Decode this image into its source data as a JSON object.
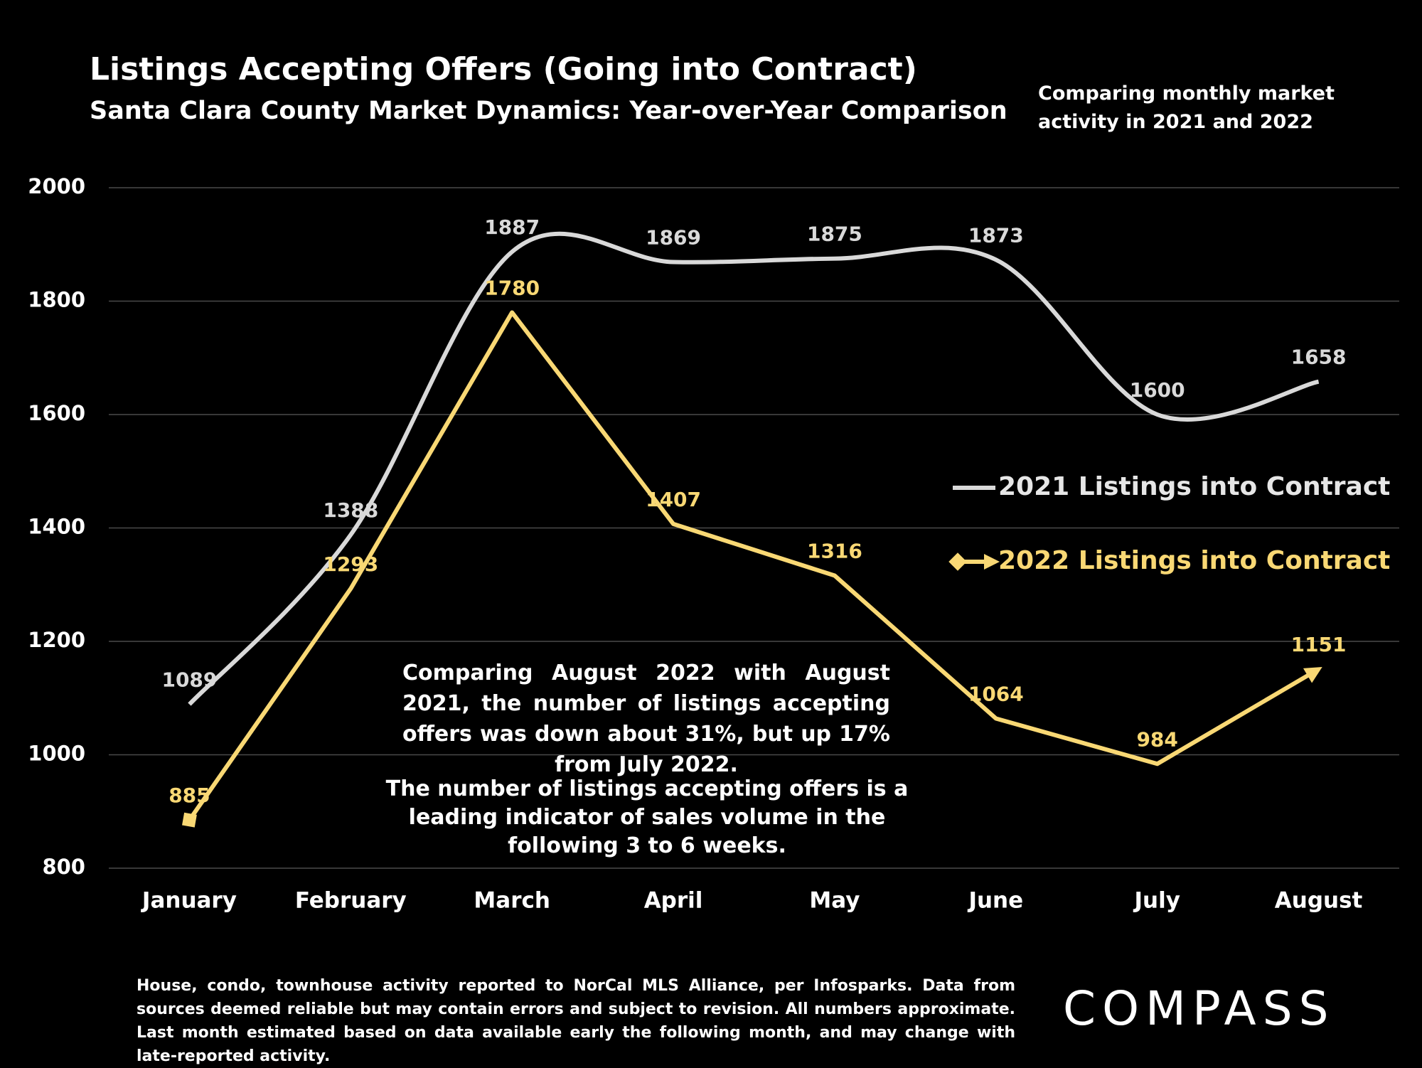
{
  "chart_data": {
    "type": "line",
    "title": "Listings Accepting Offers (Going into Contract)",
    "subtitle": "Santa Clara County Market Dynamics: Year-over-Year Comparison",
    "note": [
      "Comparing monthly market",
      "activity in 2021 and 2022"
    ],
    "categories": [
      "January",
      "February",
      "March",
      "April",
      "May",
      "June",
      "July",
      "August"
    ],
    "series": [
      {
        "name": "2021 Listings into Contract",
        "color": "#d9d9d9",
        "smooth": true,
        "values": [
          1089,
          1388,
          1887,
          1869,
          1875,
          1873,
          1600,
          1658
        ]
      },
      {
        "name": "2022 Listings into Contract",
        "color": "#f9d874",
        "smooth": false,
        "values": [
          885,
          1293,
          1780,
          1407,
          1316,
          1064,
          984,
          1151
        ]
      }
    ],
    "ylim": [
      800,
      2000
    ],
    "yticks": [
      800,
      1000,
      1200,
      1400,
      1600,
      1800,
      2000
    ],
    "grid": true,
    "legend": "right",
    "annotations": [
      "Comparing August 2022 with August 2021, the number of listings accepting offers was down about 31%, but up 17% from July 2022.",
      "The number of listings accepting offers is a leading indicator of sales volume in the following 3 to 6 weeks."
    ],
    "footnote": "House, condo, townhouse activity reported to NorCal MLS Alliance, per Infosparks. Data from sources deemed reliable but may contain errors and subject to revision. All numbers approximate. Last month estimated based on data available early the following month, and may change with late-reported activity.",
    "logo": "COMPASS"
  }
}
